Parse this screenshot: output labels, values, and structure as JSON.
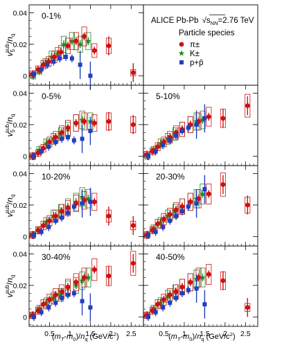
{
  "chart_data": {
    "type": "scatter",
    "experiment": "ALICE Pb-Pb",
    "energy": "=2.76 TeV",
    "energy_var": "NN",
    "legend_title": "Particle species",
    "legend": [
      {
        "key": "pi",
        "label": "π±",
        "color": "#cc1111",
        "marker": "circle"
      },
      {
        "key": "k",
        "label": "K±",
        "color": "#1d8a24",
        "marker": "star"
      },
      {
        "key": "p",
        "label": "p+p̄",
        "color": "#1f3fbf",
        "marker": "square"
      }
    ],
    "ylabel": "v5sub/nq",
    "xlabel": "(mT-m0)/nq (GeV/c2)",
    "xlim": [
      0,
      2.8
    ],
    "ylim": [
      -0.006,
      0.045
    ],
    "xticks": [
      "0.5",
      "1",
      "1.5",
      "2",
      "2.5"
    ],
    "yticks": [
      "0",
      "0.02",
      "0.04"
    ],
    "panels": [
      {
        "label": "0-1%",
        "pi": [
          [
            0.08,
            0.001
          ],
          [
            0.22,
            0.004
          ],
          [
            0.35,
            0.007
          ],
          [
            0.48,
            0.009
          ],
          [
            0.62,
            0.012
          ],
          [
            0.78,
            0.015
          ],
          [
            0.95,
            0.019
          ],
          [
            1.15,
            0.022
          ],
          [
            1.35,
            0.025
          ],
          [
            1.6,
            0.016
          ],
          [
            1.95,
            0.019
          ],
          [
            2.55,
            0.002
          ]
        ],
        "k": [
          [
            0.1,
            0.0
          ],
          [
            0.25,
            0.003
          ],
          [
            0.4,
            0.008
          ],
          [
            0.55,
            0.012
          ],
          [
            0.7,
            0.014
          ],
          [
            0.85,
            0.02
          ],
          [
            1.05,
            0.022
          ],
          [
            1.25,
            0.02
          ],
          [
            1.45,
            0.022
          ]
        ],
        "p": [
          [
            0.12,
            0.001
          ],
          [
            0.3,
            0.004
          ],
          [
            0.45,
            0.007
          ],
          [
            0.6,
            0.009
          ],
          [
            0.75,
            0.011
          ],
          [
            0.9,
            0.012
          ],
          [
            1.05,
            0.011
          ],
          [
            1.25,
            0.007
          ],
          [
            1.5,
            0.0
          ]
        ]
      },
      {
        "label": "0-5%",
        "pi": [
          [
            0.08,
            0.0
          ],
          [
            0.22,
            0.002
          ],
          [
            0.35,
            0.005
          ],
          [
            0.5,
            0.009
          ],
          [
            0.65,
            0.012
          ],
          [
            0.8,
            0.015
          ],
          [
            0.95,
            0.018
          ],
          [
            1.15,
            0.021
          ],
          [
            1.35,
            0.022
          ],
          [
            1.6,
            0.021
          ],
          [
            1.95,
            0.022
          ],
          [
            2.55,
            0.02
          ]
        ],
        "k": [
          [
            0.1,
            0.0
          ],
          [
            0.25,
            0.004
          ],
          [
            0.42,
            0.008
          ],
          [
            0.6,
            0.011
          ],
          [
            0.78,
            0.014
          ],
          [
            0.95,
            0.017
          ],
          [
            1.15,
            0.021
          ],
          [
            1.3,
            0.023
          ],
          [
            1.5,
            0.022
          ]
        ],
        "p": [
          [
            0.12,
            0.0
          ],
          [
            0.3,
            0.003
          ],
          [
            0.48,
            0.006
          ],
          [
            0.65,
            0.009
          ],
          [
            0.8,
            0.011
          ],
          [
            0.95,
            0.012
          ],
          [
            1.1,
            0.01
          ],
          [
            1.3,
            0.011
          ],
          [
            1.5,
            0.016
          ]
        ]
      },
      {
        "label": "5-10%",
        "pi": [
          [
            0.08,
            0.001
          ],
          [
            0.22,
            0.003
          ],
          [
            0.35,
            0.006
          ],
          [
            0.5,
            0.009
          ],
          [
            0.65,
            0.012
          ],
          [
            0.8,
            0.015
          ],
          [
            0.95,
            0.017
          ],
          [
            1.15,
            0.02
          ],
          [
            1.35,
            0.022
          ],
          [
            1.6,
            0.025
          ],
          [
            1.95,
            0.024
          ],
          [
            2.55,
            0.032
          ]
        ],
        "k": [
          [
            0.1,
            0.0
          ],
          [
            0.25,
            0.004
          ],
          [
            0.42,
            0.008
          ],
          [
            0.6,
            0.011
          ],
          [
            0.78,
            0.014
          ],
          [
            0.95,
            0.017
          ],
          [
            1.15,
            0.02
          ],
          [
            1.3,
            0.022
          ],
          [
            1.45,
            0.023
          ]
        ],
        "p": [
          [
            0.12,
            0.0
          ],
          [
            0.3,
            0.003
          ],
          [
            0.48,
            0.007
          ],
          [
            0.65,
            0.01
          ],
          [
            0.8,
            0.013
          ],
          [
            0.95,
            0.016
          ],
          [
            1.1,
            0.018
          ],
          [
            1.3,
            0.02
          ],
          [
            1.5,
            0.024
          ]
        ]
      },
      {
        "label": "10-20%",
        "pi": [
          [
            0.08,
            0.001
          ],
          [
            0.22,
            0.004
          ],
          [
            0.35,
            0.007
          ],
          [
            0.5,
            0.01
          ],
          [
            0.65,
            0.013
          ],
          [
            0.8,
            0.016
          ],
          [
            0.95,
            0.018
          ],
          [
            1.15,
            0.021
          ],
          [
            1.35,
            0.023
          ],
          [
            1.6,
            0.022
          ],
          [
            1.95,
            0.013
          ],
          [
            2.55,
            0.007
          ]
        ],
        "k": [
          [
            0.1,
            0.001
          ],
          [
            0.25,
            0.004
          ],
          [
            0.42,
            0.009
          ],
          [
            0.6,
            0.013
          ],
          [
            0.78,
            0.016
          ],
          [
            0.95,
            0.019
          ],
          [
            1.15,
            0.022
          ],
          [
            1.3,
            0.025
          ],
          [
            1.45,
            0.024
          ]
        ],
        "p": [
          [
            0.12,
            0.001
          ],
          [
            0.3,
            0.003
          ],
          [
            0.48,
            0.006
          ],
          [
            0.65,
            0.01
          ],
          [
            0.8,
            0.012
          ],
          [
            0.95,
            0.015
          ],
          [
            1.1,
            0.019
          ],
          [
            1.3,
            0.021
          ],
          [
            1.5,
            0.022
          ]
        ]
      },
      {
        "label": "20-30%",
        "pi": [
          [
            0.08,
            0.001
          ],
          [
            0.22,
            0.004
          ],
          [
            0.35,
            0.008
          ],
          [
            0.5,
            0.011
          ],
          [
            0.65,
            0.014
          ],
          [
            0.8,
            0.017
          ],
          [
            0.95,
            0.019
          ],
          [
            1.15,
            0.022
          ],
          [
            1.35,
            0.024
          ],
          [
            1.6,
            0.027
          ],
          [
            1.95,
            0.033
          ],
          [
            2.55,
            0.02
          ]
        ],
        "k": [
          [
            0.1,
            0.001
          ],
          [
            0.25,
            0.005
          ],
          [
            0.42,
            0.009
          ],
          [
            0.6,
            0.013
          ],
          [
            0.78,
            0.016
          ],
          [
            0.95,
            0.019
          ],
          [
            1.15,
            0.022
          ],
          [
            1.3,
            0.024
          ],
          [
            1.45,
            0.027
          ]
        ],
        "p": [
          [
            0.12,
            0.001
          ],
          [
            0.3,
            0.003
          ],
          [
            0.48,
            0.006
          ],
          [
            0.65,
            0.01
          ],
          [
            0.8,
            0.013
          ],
          [
            0.95,
            0.016
          ],
          [
            1.1,
            0.019
          ],
          [
            1.3,
            0.021
          ],
          [
            1.5,
            0.03
          ]
        ]
      },
      {
        "label": "30-40%",
        "pi": [
          [
            0.08,
            0.001
          ],
          [
            0.22,
            0.004
          ],
          [
            0.35,
            0.008
          ],
          [
            0.5,
            0.011
          ],
          [
            0.65,
            0.014
          ],
          [
            0.8,
            0.016
          ],
          [
            0.95,
            0.019
          ],
          [
            1.15,
            0.022
          ],
          [
            1.35,
            0.025
          ],
          [
            1.6,
            0.03
          ],
          [
            1.95,
            0.026
          ],
          [
            2.55,
            0.034
          ]
        ],
        "k": [
          [
            0.1,
            0.001
          ],
          [
            0.25,
            0.005
          ],
          [
            0.42,
            0.009
          ],
          [
            0.6,
            0.012
          ],
          [
            0.78,
            0.014
          ],
          [
            0.95,
            0.018
          ],
          [
            1.15,
            0.02
          ],
          [
            1.3,
            0.023
          ],
          [
            1.45,
            0.025
          ]
        ],
        "p": [
          [
            0.12,
            0.0
          ],
          [
            0.3,
            0.003
          ],
          [
            0.48,
            0.006
          ],
          [
            0.65,
            0.009
          ],
          [
            0.8,
            0.012
          ],
          [
            0.95,
            0.014
          ],
          [
            1.1,
            0.015
          ],
          [
            1.3,
            0.01
          ],
          [
            1.5,
            0.006
          ]
        ]
      },
      {
        "label": "40-50%",
        "pi": [
          [
            0.08,
            0.001
          ],
          [
            0.22,
            0.004
          ],
          [
            0.35,
            0.008
          ],
          [
            0.5,
            0.011
          ],
          [
            0.65,
            0.014
          ],
          [
            0.8,
            0.016
          ],
          [
            0.95,
            0.019
          ],
          [
            1.15,
            0.022
          ],
          [
            1.35,
            0.025
          ],
          [
            1.6,
            0.027
          ],
          [
            1.95,
            0.023
          ],
          [
            2.55,
            0.006
          ]
        ],
        "k": [
          [
            0.1,
            0.001
          ],
          [
            0.25,
            0.005
          ],
          [
            0.42,
            0.009
          ],
          [
            0.6,
            0.013
          ],
          [
            0.78,
            0.016
          ],
          [
            0.95,
            0.019
          ],
          [
            1.15,
            0.022
          ],
          [
            1.3,
            0.024
          ],
          [
            1.45,
            0.025
          ]
        ],
        "p": [
          [
            0.12,
            0.0
          ],
          [
            0.3,
            0.003
          ],
          [
            0.48,
            0.006
          ],
          [
            0.65,
            0.009
          ],
          [
            0.8,
            0.012
          ],
          [
            0.95,
            0.015
          ],
          [
            1.1,
            0.017
          ],
          [
            1.3,
            0.018
          ],
          [
            1.5,
            0.008
          ]
        ]
      }
    ]
  }
}
